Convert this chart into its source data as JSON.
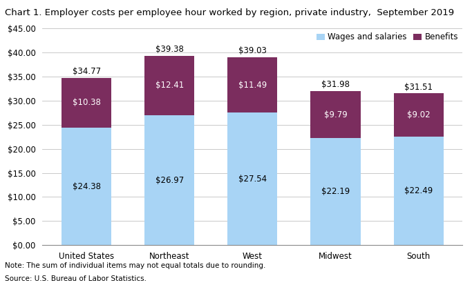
{
  "title": "Chart 1. Employer costs per employee hour worked by region, private industry,  September 2019",
  "categories": [
    "United States",
    "Northeast",
    "West",
    "Midwest",
    "South"
  ],
  "wages": [
    24.38,
    26.97,
    27.54,
    22.19,
    22.49
  ],
  "benefits": [
    10.38,
    12.41,
    11.49,
    9.79,
    9.02
  ],
  "totals": [
    34.77,
    39.38,
    39.03,
    31.98,
    31.51
  ],
  "wages_color": "#a8d4f5",
  "benefits_color": "#7B2D5E",
  "wages_label": "Wages and salaries",
  "benefits_label": "Benefits",
  "ylim": [
    0,
    45
  ],
  "yticks": [
    0,
    5,
    10,
    15,
    20,
    25,
    30,
    35,
    40,
    45
  ],
  "note": "Note: The sum of individual items may not equal totals due to rounding.",
  "source": "Source: U.S. Bureau of Labor Statistics.",
  "bar_width": 0.6,
  "title_fontsize": 9.5,
  "tick_fontsize": 8.5,
  "label_fontsize": 8.5,
  "legend_fontsize": 8.5,
  "note_fontsize": 7.5
}
